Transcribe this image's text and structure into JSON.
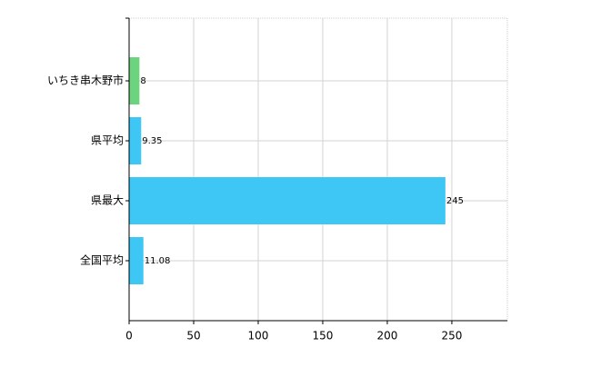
{
  "chart_data": {
    "type": "barh",
    "categories": [
      "いちき串木野市",
      "県平均",
      "県最大",
      "全国平均"
    ],
    "values": [
      8,
      9.35,
      245,
      11.08
    ],
    "colors": [
      "#6cd47e",
      "#3ec6f5",
      "#3ec6f5",
      "#3ec6f5"
    ],
    "xlim": [
      0,
      293
    ],
    "xticks": [
      0,
      50,
      100,
      150,
      200,
      250
    ],
    "grid": true
  }
}
